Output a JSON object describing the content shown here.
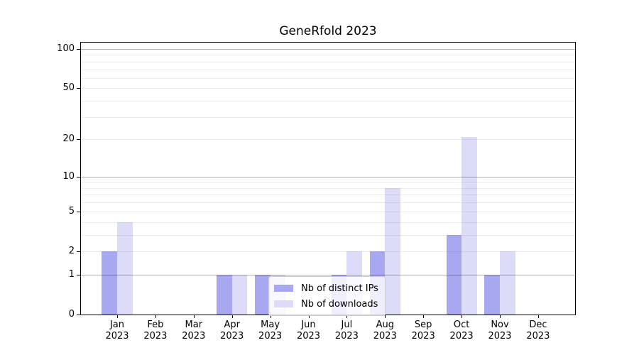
{
  "title": "GeneRfold 2023",
  "colors": {
    "background": "#ffffff",
    "spine": "#000000",
    "text": "#000000",
    "grid_weak": "#ececec",
    "grid_strong": "#b3b3b3",
    "bar_ips": "#a8a8f0",
    "bar_downloads": "#dcdcf8"
  },
  "legend": {
    "position": "lower-center"
  },
  "chart_data": {
    "type": "bar",
    "title": "GeneRfold 2023",
    "categories": [
      "Jan",
      "Feb",
      "Mar",
      "Apr",
      "May",
      "Jun",
      "Jul",
      "Aug",
      "Sep",
      "Oct",
      "Nov",
      "Dec"
    ],
    "year_label": "2023",
    "series": [
      {
        "name": "Nb of distinct IPs",
        "color": "#a8a8f0",
        "values": [
          2,
          0,
          0,
          1,
          1,
          0,
          1,
          2,
          0,
          3,
          1,
          0
        ]
      },
      {
        "name": "Nb of downloads",
        "color": "#dcdcf8",
        "values": [
          4,
          0,
          0,
          1,
          1,
          0,
          2,
          8,
          0,
          21,
          2,
          0
        ]
      }
    ],
    "xlabel": "",
    "ylabel": "",
    "yscale": "log1p",
    "ylim": [
      0,
      114.7
    ],
    "yticks": [
      0,
      1,
      2,
      5,
      10,
      20,
      50,
      100
    ],
    "grid_weak": [
      2,
      3,
      4,
      5,
      6,
      7,
      8,
      9,
      20,
      30,
      40,
      50,
      60,
      70,
      80,
      90
    ],
    "grid_strong": [
      1,
      10,
      100
    ],
    "grid": "on",
    "legend_position": "lower-center"
  }
}
